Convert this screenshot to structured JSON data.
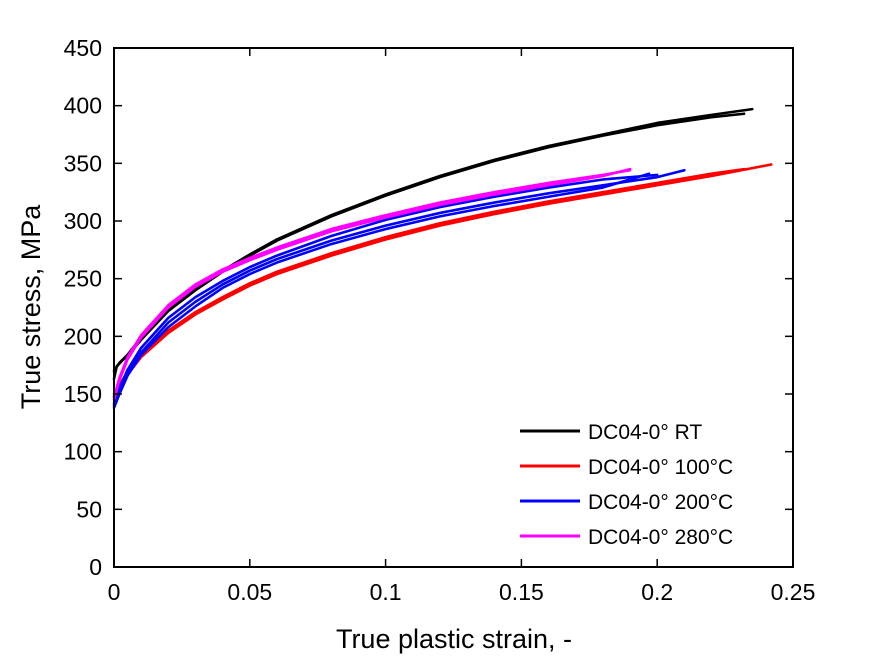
{
  "chart_data": {
    "type": "line",
    "title": "",
    "xlabel": "True plastic strain, -",
    "ylabel": "True stress, MPa",
    "xlim": [
      0,
      0.25
    ],
    "ylim": [
      0,
      450
    ],
    "xticks": [
      {
        "value": 0,
        "label": "0"
      },
      {
        "value": 0.05,
        "label": "0.05"
      },
      {
        "value": 0.1,
        "label": "0.1"
      },
      {
        "value": 0.15,
        "label": "0.15"
      },
      {
        "value": 0.2,
        "label": "0.2"
      },
      {
        "value": 0.25,
        "label": "0.25"
      }
    ],
    "yticks": [
      {
        "value": 0,
        "label": "0"
      },
      {
        "value": 50,
        "label": "50"
      },
      {
        "value": 100,
        "label": "100"
      },
      {
        "value": 150,
        "label": "150"
      },
      {
        "value": 200,
        "label": "200"
      },
      {
        "value": 250,
        "label": "250"
      },
      {
        "value": 300,
        "label": "300"
      },
      {
        "value": 350,
        "label": "350"
      },
      {
        "value": 400,
        "label": "400"
      },
      {
        "value": 450,
        "label": "450"
      }
    ],
    "grid": false,
    "legend_position": "bottom-right",
    "series": [
      {
        "name": "DC04-0° RT",
        "color": "#000000",
        "curves": [
          {
            "x": [
              0,
              0.001,
              0.003,
              0.005,
              0.01,
              0.02,
              0.03,
              0.04,
              0.05,
              0.06,
              0.08,
              0.1,
              0.12,
              0.14,
              0.16,
              0.18,
              0.2,
              0.22,
              0.232
            ],
            "y": [
              163,
              174,
              179,
              183,
              197,
              222,
              240,
              256,
              270,
              283,
              304,
              322,
              338,
              352,
              364,
              374,
              383,
              390,
              393
            ]
          },
          {
            "x": [
              0,
              0.002,
              0.005,
              0.01,
              0.02,
              0.03,
              0.04,
              0.05,
              0.06,
              0.08,
              0.1,
              0.12,
              0.14,
              0.16,
              0.18,
              0.2,
              0.22,
              0.235
            ],
            "y": [
              170,
              177,
              184,
              199,
              224,
              241,
              257,
              271,
              284,
              305,
              323,
              339,
              353,
              365,
              375,
              385,
              392,
              397
            ]
          }
        ]
      },
      {
        "name": "DC04-0° 100°C",
        "color": "#ff0000",
        "curves": [
          {
            "x": [
              0,
              0.002,
              0.005,
              0.01,
              0.02,
              0.03,
              0.04,
              0.05,
              0.06,
              0.08,
              0.1,
              0.12,
              0.14,
              0.16,
              0.18,
              0.2,
              0.22,
              0.242
            ],
            "y": [
              148,
              156,
              167,
              182,
              203,
              219,
              232,
              244,
              254,
              270,
              284,
              296,
              306,
              315,
              323,
              331,
              339,
              349
            ]
          },
          {
            "x": [
              0,
              0.002,
              0.005,
              0.01,
              0.02,
              0.03,
              0.04,
              0.05,
              0.06,
              0.08,
              0.1,
              0.12,
              0.14,
              0.16,
              0.18,
              0.2,
              0.22,
              0.232
            ],
            "y": [
              150,
              158,
              169,
              184,
              205,
              221,
              234,
              246,
              256,
              272,
              286,
              298,
              308,
              317,
              325,
              333,
              341,
              345
            ]
          }
        ]
      },
      {
        "name": "DC04-0° 200°C",
        "color": "#0000ff",
        "curves": [
          {
            "x": [
              0,
              0.002,
              0.005,
              0.01,
              0.02,
              0.03,
              0.04,
              0.05,
              0.06,
              0.08,
              0.1,
              0.12,
              0.14,
              0.16,
              0.18,
              0.2,
              0.21
            ],
            "y": [
              140,
              152,
              168,
              186,
              212,
              230,
              245,
              257,
              267,
              283,
              296,
              307,
              316,
              324,
              331,
              338,
              344
            ]
          },
          {
            "x": [
              0,
              0.002,
              0.005,
              0.01,
              0.02,
              0.03,
              0.04,
              0.05,
              0.06,
              0.08,
              0.1,
              0.12,
              0.14,
              0.16,
              0.18,
              0.197
            ],
            "y": [
              138,
              150,
              166,
              184,
              208,
              226,
              242,
              254,
              264,
              280,
              293,
              304,
              313,
              321,
              329,
              341
            ]
          },
          {
            "x": [
              0,
              0.002,
              0.005,
              0.01,
              0.02,
              0.03,
              0.04,
              0.05,
              0.06,
              0.08,
              0.1,
              0.12,
              0.14,
              0.16,
              0.18,
              0.2
            ],
            "y": [
              142,
              155,
              171,
              190,
              216,
              234,
              248,
              260,
              270,
              287,
              301,
              312,
              321,
              329,
              336,
              340
            ]
          }
        ]
      },
      {
        "name": "DC04-0° 280°C",
        "color": "#ff00ff",
        "curves": [
          {
            "x": [
              0,
              0.002,
              0.005,
              0.01,
              0.02,
              0.03,
              0.04,
              0.05,
              0.06,
              0.08,
              0.1,
              0.12,
              0.14,
              0.16,
              0.18,
              0.19
            ],
            "y": [
              145,
              162,
              180,
              199,
              225,
              243,
              256,
              266,
              275,
              291,
              303,
              314,
              323,
              331,
              339,
              345
            ]
          },
          {
            "x": [
              0,
              0.002,
              0.005,
              0.01,
              0.02,
              0.03,
              0.04,
              0.05,
              0.06,
              0.08,
              0.1,
              0.12,
              0.14,
              0.16,
              0.18,
              0.19
            ],
            "y": [
              147,
              164,
              182,
              201,
              227,
              245,
              258,
              268,
              277,
              293,
              305,
              316,
              325,
              333,
              340,
              344
            ]
          }
        ]
      }
    ]
  }
}
